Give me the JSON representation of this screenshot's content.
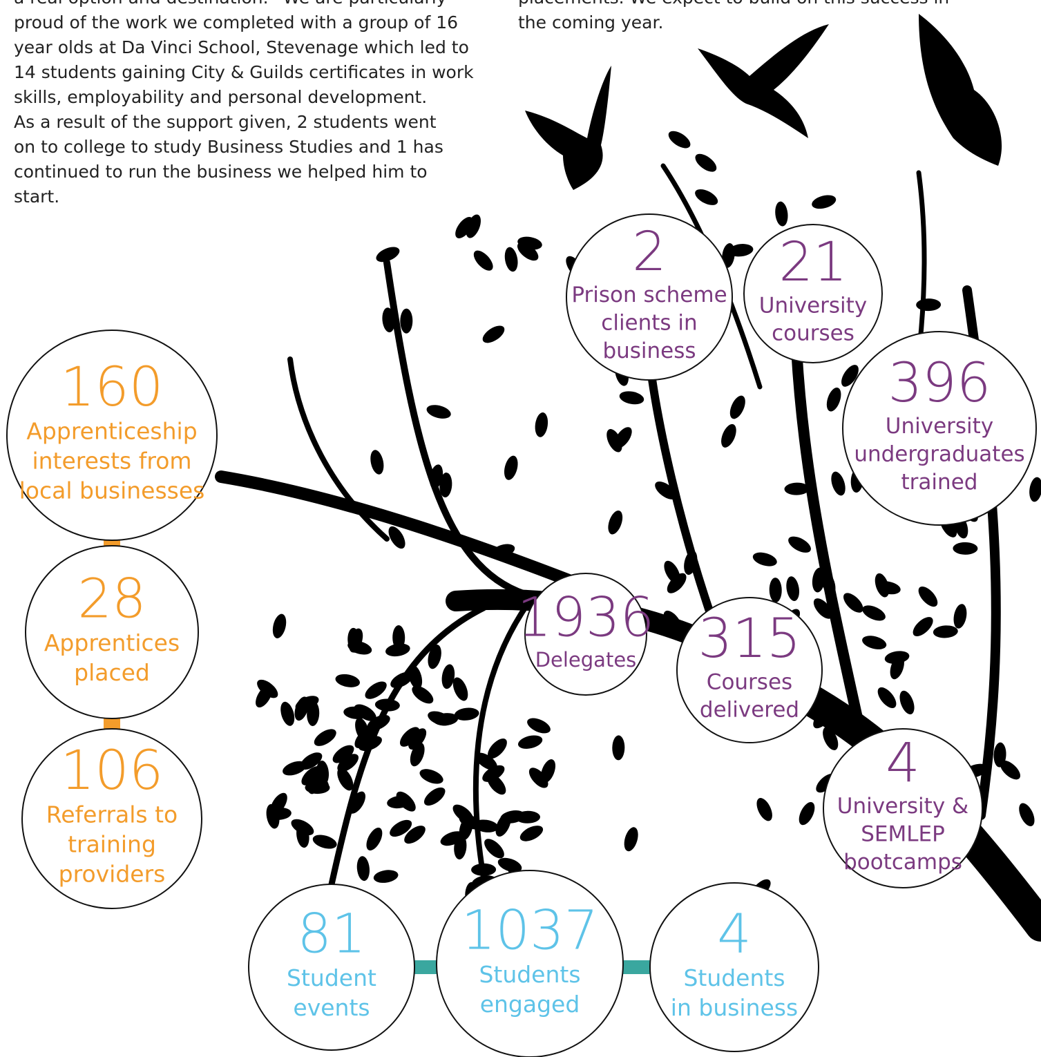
{
  "text_left": [
    "a real option and destination.” We are particularly",
    "proud of the work we completed with a group of 16",
    "year olds at Da Vinci School, Stevenage which led to",
    "14 students gaining City & Guilds certificates in work",
    "skills, employability and personal development.",
    "As a result of the support given, 2 students went",
    "on to college to study Business Studies and 1 has",
    "continued to run the business we helped him to",
    "start."
  ],
  "text_right": [
    "placements. We expect to build on this success in",
    "the coming year."
  ],
  "stats": [
    {
      "value": 160,
      "label": [
        "Apprenticeship",
        "interests from",
        "local businesses"
      ],
      "color": "#f39c2b"
    },
    {
      "value": 28,
      "label": [
        "Apprentices",
        "placed"
      ],
      "color": "#f39c2b"
    },
    {
      "value": 106,
      "label": [
        "Referrals to",
        "training",
        "providers"
      ],
      "color": "#f39c2b"
    },
    {
      "value": 81,
      "label": [
        "Student",
        "events"
      ],
      "color": "#5ec3e8"
    },
    {
      "value": 1037,
      "label": [
        "Students",
        "engaged"
      ],
      "color": "#5ec3e8"
    },
    {
      "value": 4,
      "label": [
        "Students",
        "in business"
      ],
      "color": "#5ec3e8"
    },
    {
      "value": 2,
      "label": [
        "Prison scheme",
        "clients in",
        "business"
      ],
      "color": "#7b3a80"
    },
    {
      "value": 21,
      "label": [
        "University",
        "courses"
      ],
      "color": "#7b3a80"
    },
    {
      "value": 396,
      "label": [
        "University",
        "undergraduates",
        "trained"
      ],
      "color": "#7b3a80"
    },
    {
      "value": 1936,
      "label": [
        "Delegates"
      ],
      "color": "#7b3a80"
    },
    {
      "value": 315,
      "label": [
        "Courses",
        "delivered"
      ],
      "color": "#7b3a80"
    },
    {
      "value": 4,
      "label": [
        "University &",
        "SEMLEP",
        "bootcamps"
      ],
      "color": "#7b3a80"
    }
  ]
}
